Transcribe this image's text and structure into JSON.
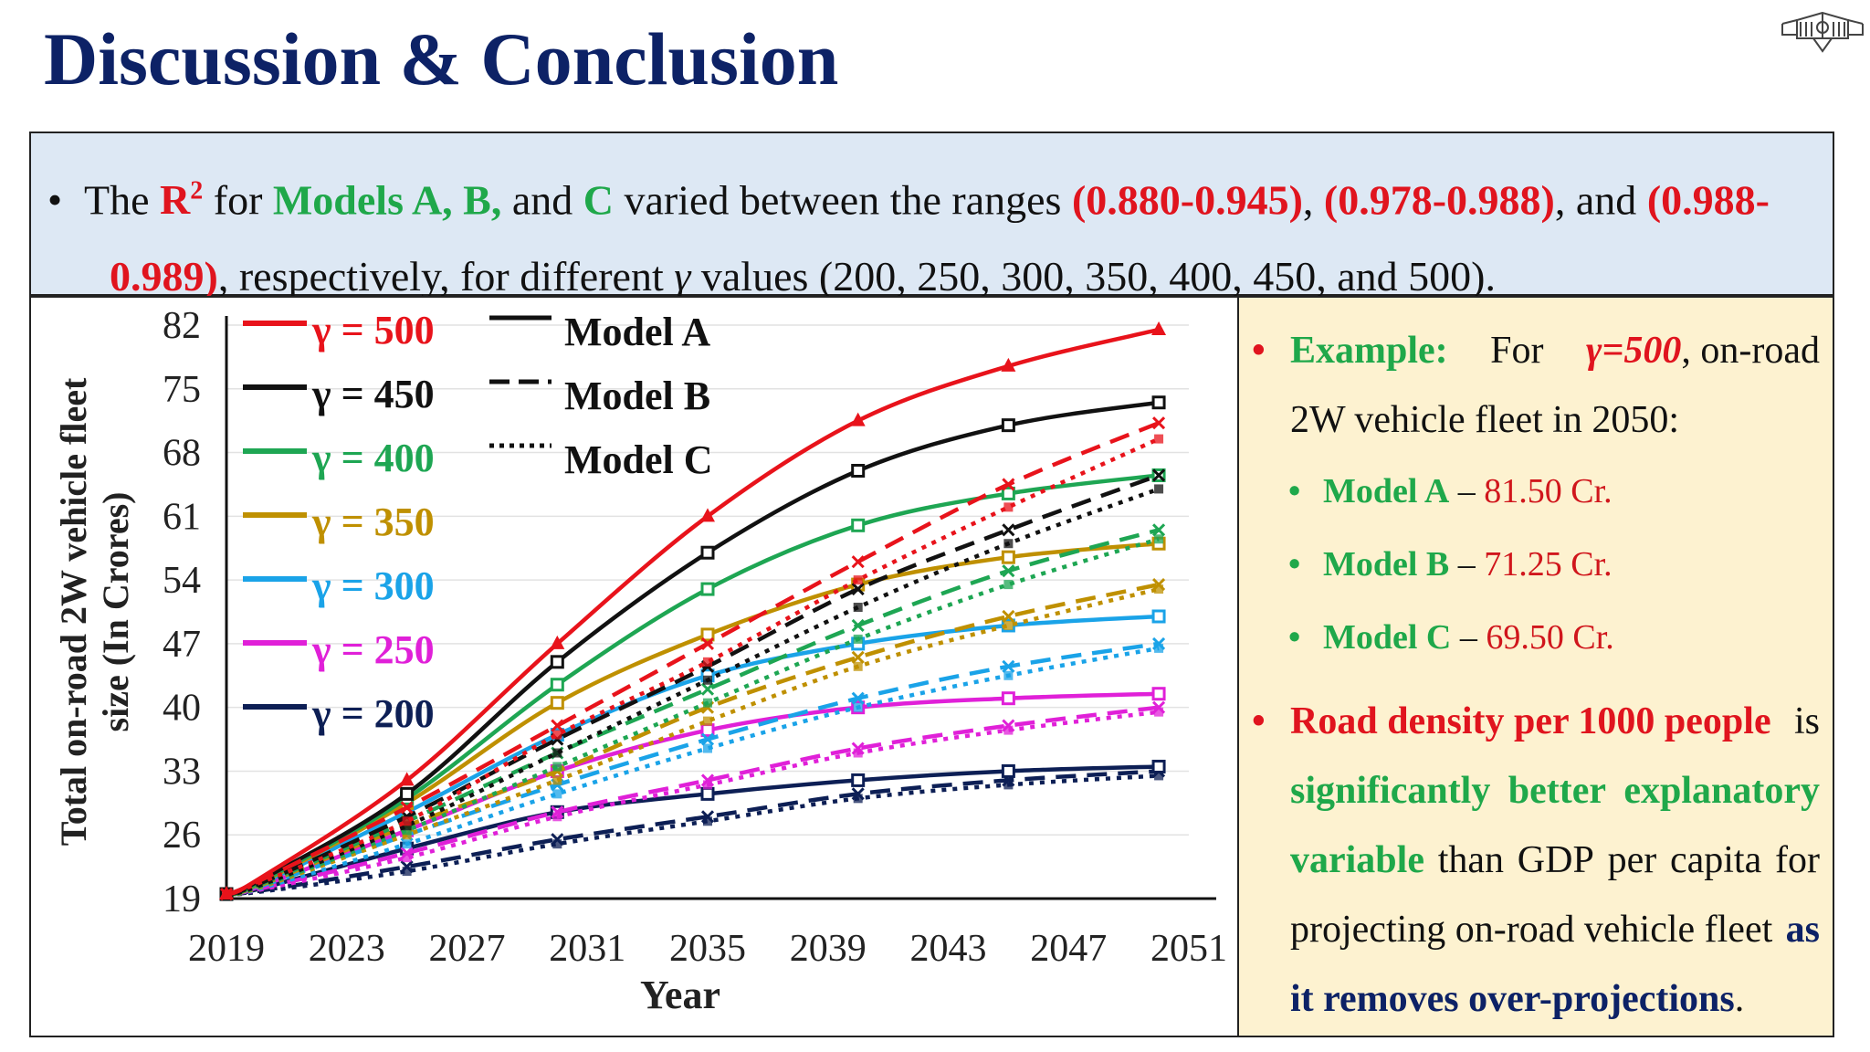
{
  "slide": {
    "title": "Discussion & Conclusion"
  },
  "summary": {
    "bullet": "•",
    "t1": "The ",
    "r2": "R",
    "r2_sup": "2",
    "t2": " for ",
    "models": "Models A, B,",
    "t3": " and ",
    "model_c": "C",
    "t4": " varied between the ranges ",
    "range_a": "(0.880-0.945)",
    "t5": ", ",
    "range_b": "(0.978-0.988)",
    "t6": ", and ",
    "range_c1": "(0.988-",
    "range_c2": "0.989)",
    "t7": ", respectively, for different ",
    "gamma": "γ",
    "t8": " values (200, 250, 300, 350, 400, 450, and 500)."
  },
  "side": {
    "bullet": "•",
    "example_label": "Example:",
    "for_word": "For",
    "gamma_value": "γ=500",
    "comma_onroad": ", on-road",
    "line2": "2W vehicle fleet in 2050:",
    "items": [
      {
        "model": "Model A",
        "dash": " – ",
        "value": "81.50 Cr."
      },
      {
        "model": "Model B",
        "dash": " – ",
        "value": "71.25 Cr."
      },
      {
        "model": "Model C",
        "dash": " – ",
        "value": "69.50 Cr."
      }
    ],
    "road_density": "Road density per 1000 people",
    "is_word": "is",
    "sig_words": [
      "significantly",
      "better",
      "explanatory"
    ],
    "variable": "variable",
    "than_words": [
      "than",
      "GDP",
      "per",
      "capita",
      "for"
    ],
    "projecting": "projecting on-road vehicle fleet",
    "as_word": "as",
    "removes": "it removes over-projections",
    "period": "."
  },
  "chart_data": {
    "type": "line",
    "xlabel": "Year",
    "ylabel_line1": "Total on-road 2W vehicle fleet",
    "ylabel_line2": "size (In Crores)",
    "x_ticks": [
      "2019",
      "2023",
      "2027",
      "2031",
      "2035",
      "2039",
      "2043",
      "2047",
      "2051"
    ],
    "y_ticks": [
      "19",
      "26",
      "33",
      "40",
      "47",
      "54",
      "61",
      "68",
      "75",
      "82"
    ],
    "xlim": [
      2019,
      2051
    ],
    "ylim": [
      19,
      82
    ],
    "x": [
      2019,
      2020,
      2025,
      2030,
      2035,
      2040,
      2045,
      2050
    ],
    "legend_gamma": [
      {
        "label": "γ = 500",
        "color": "#e8131b"
      },
      {
        "label": "γ = 450",
        "color": "#111111"
      },
      {
        "label": "γ = 400",
        "color": "#1ea653"
      },
      {
        "label": "γ = 350",
        "color": "#bf9000"
      },
      {
        "label": "γ = 300",
        "color": "#1aa3e8"
      },
      {
        "label": "γ = 250",
        "color": "#e020d8"
      },
      {
        "label": "γ = 200",
        "color": "#0d1f55"
      }
    ],
    "legend_models": [
      {
        "label": "Model A",
        "style": "solid"
      },
      {
        "label": "Model B",
        "style": "dashed"
      },
      {
        "label": "Model C",
        "style": "dotted"
      }
    ],
    "series": [
      {
        "gamma": 500,
        "model": "A",
        "values": [
          19.5,
          21.0,
          32.0,
          47.0,
          61.0,
          71.5,
          77.5,
          81.5
        ]
      },
      {
        "gamma": 500,
        "model": "B",
        "values": [
          19.5,
          20.8,
          29.0,
          38.0,
          47.0,
          56.0,
          64.5,
          71.25
        ]
      },
      {
        "gamma": 500,
        "model": "C",
        "values": [
          19.5,
          20.6,
          27.5,
          37.0,
          45.0,
          54.0,
          62.0,
          69.5
        ]
      },
      {
        "gamma": 450,
        "model": "A",
        "values": [
          19.5,
          20.8,
          30.5,
          45.0,
          57.0,
          66.0,
          71.0,
          73.5
        ]
      },
      {
        "gamma": 450,
        "model": "B",
        "values": [
          19.5,
          20.5,
          28.0,
          36.5,
          44.5,
          53.0,
          59.5,
          65.5
        ]
      },
      {
        "gamma": 450,
        "model": "C",
        "values": [
          19.5,
          20.3,
          27.0,
          35.0,
          43.0,
          51.0,
          58.0,
          64.0
        ]
      },
      {
        "gamma": 400,
        "model": "A",
        "values": [
          19.5,
          20.6,
          30.0,
          42.5,
          53.0,
          60.0,
          63.5,
          65.5
        ]
      },
      {
        "gamma": 400,
        "model": "B",
        "values": [
          19.5,
          20.4,
          27.5,
          35.0,
          42.0,
          49.0,
          55.0,
          59.5
        ]
      },
      {
        "gamma": 400,
        "model": "C",
        "values": [
          19.5,
          20.2,
          26.5,
          33.5,
          40.5,
          47.5,
          53.5,
          58.5
        ]
      },
      {
        "gamma": 350,
        "model": "A",
        "values": [
          19.5,
          20.5,
          29.5,
          40.5,
          48.0,
          53.5,
          56.5,
          58.0
        ]
      },
      {
        "gamma": 350,
        "model": "B",
        "values": [
          19.5,
          20.3,
          27.0,
          33.0,
          40.0,
          45.5,
          50.0,
          53.5
        ]
      },
      {
        "gamma": 350,
        "model": "C",
        "values": [
          19.5,
          20.1,
          26.0,
          32.0,
          38.5,
          44.5,
          49.0,
          53.0
        ]
      },
      {
        "gamma": 300,
        "model": "A",
        "values": [
          19.5,
          20.4,
          28.5,
          37.0,
          43.5,
          47.0,
          49.0,
          50.0
        ]
      },
      {
        "gamma": 300,
        "model": "B",
        "values": [
          19.5,
          20.2,
          26.0,
          31.5,
          36.5,
          41.0,
          44.5,
          47.0
        ]
      },
      {
        "gamma": 300,
        "model": "C",
        "values": [
          19.5,
          20.0,
          25.0,
          30.5,
          35.5,
          40.0,
          43.5,
          46.5
        ]
      },
      {
        "gamma": 250,
        "model": "A",
        "values": [
          19.5,
          20.2,
          26.5,
          33.0,
          37.5,
          40.0,
          41.0,
          41.5
        ]
      },
      {
        "gamma": 250,
        "model": "B",
        "values": [
          19.5,
          20.0,
          24.0,
          28.5,
          32.0,
          35.5,
          38.0,
          40.0
        ]
      },
      {
        "gamma": 250,
        "model": "C",
        "values": [
          19.5,
          19.9,
          23.5,
          28.0,
          31.5,
          35.0,
          37.5,
          39.5
        ]
      },
      {
        "gamma": 200,
        "model": "A",
        "values": [
          19.5,
          20.0,
          24.5,
          28.5,
          30.5,
          32.0,
          33.0,
          33.5
        ]
      },
      {
        "gamma": 200,
        "model": "B",
        "values": [
          19.5,
          19.8,
          22.5,
          25.5,
          28.0,
          30.5,
          32.0,
          33.0
        ]
      },
      {
        "gamma": 200,
        "model": "C",
        "values": [
          19.5,
          19.7,
          22.0,
          25.0,
          27.5,
          30.0,
          31.5,
          32.5
        ]
      }
    ]
  }
}
